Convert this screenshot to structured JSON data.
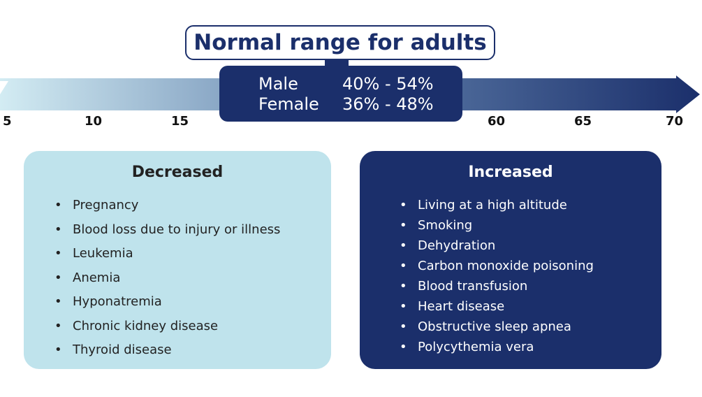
{
  "title": "Normal range for adults",
  "normal_range": [
    {
      "label": "Male",
      "value": "40% - 54%"
    },
    {
      "label": "Female",
      "value": "36% - 48%"
    }
  ],
  "axis_ticks_left": [
    "5",
    "10",
    "15"
  ],
  "axis_ticks_right": [
    "60",
    "65",
    "70"
  ],
  "decreased": {
    "heading": "Decreased",
    "items": [
      "Pregnancy",
      "Blood loss due to injury or illness",
      "Leukemia",
      "Anemia",
      "Hyponatremia",
      "Chronic kidney disease",
      "Thyroid disease"
    ]
  },
  "increased": {
    "heading": "Increased",
    "items": [
      "Living at a high altitude",
      "Smoking",
      "Dehydration",
      "Carbon monoxide poisoning",
      "Blood transfusion",
      "Heart disease",
      "Obstructive sleep apnea",
      "Polycythemia vera"
    ]
  },
  "colors": {
    "navy": "#1b2f6b",
    "light_blue": "#bfe3ec",
    "arrow_start": "#d3ecf3"
  }
}
